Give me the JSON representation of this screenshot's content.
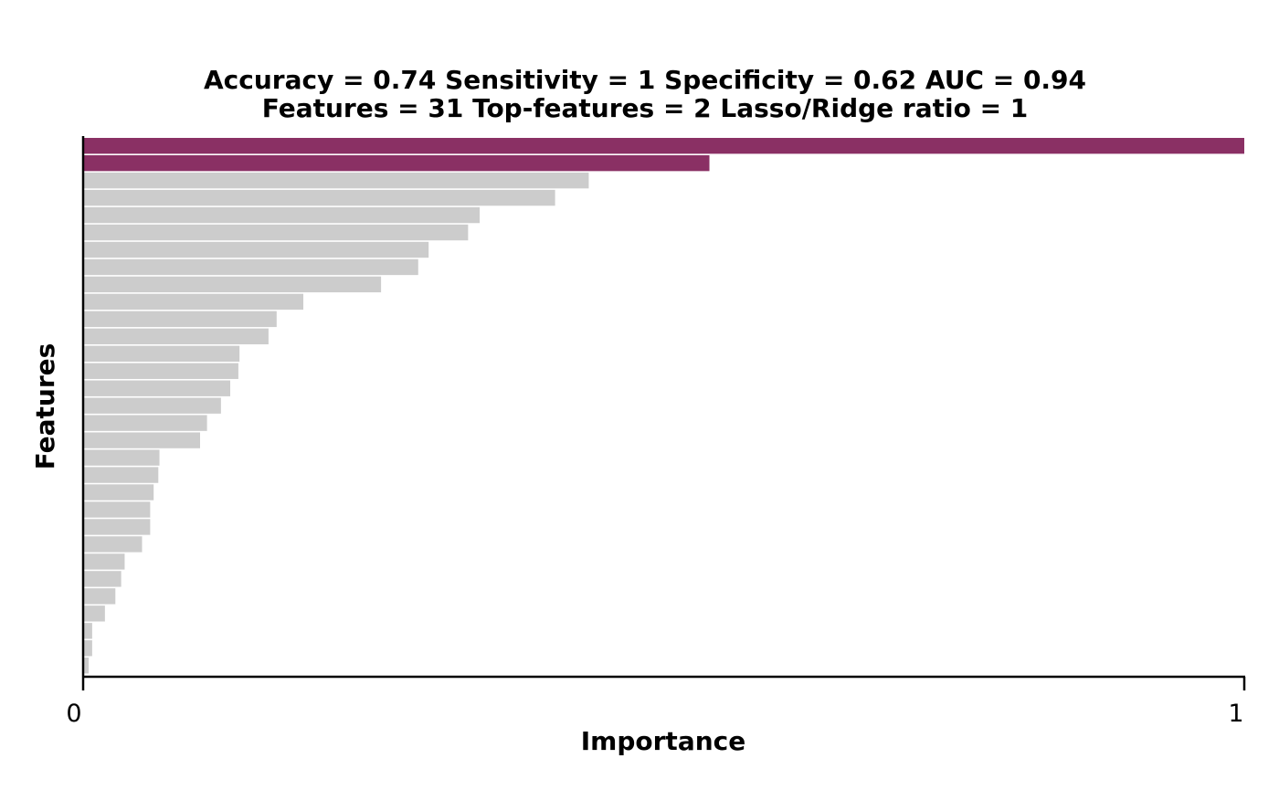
{
  "chart_data": {
    "type": "bar",
    "orientation": "horizontal",
    "title_lines": [
      "Accuracy = 0.74    Sensitivity = 1    Specificity = 0.62    AUC = 0.94",
      "Features = 31    Top-features = 2    Lasso/Ridge ratio = 1"
    ],
    "xlabel": "Importance",
    "ylabel": "Features",
    "xlim": [
      0,
      1
    ],
    "x_ticks": [
      "0",
      "1"
    ],
    "grid": false,
    "legend": "none",
    "top_features": 2,
    "values": [
      1.0,
      0.539,
      0.435,
      0.406,
      0.341,
      0.331,
      0.297,
      0.288,
      0.256,
      0.189,
      0.166,
      0.159,
      0.134,
      0.133,
      0.126,
      0.118,
      0.106,
      0.1,
      0.065,
      0.064,
      0.06,
      0.057,
      0.057,
      0.05,
      0.035,
      0.032,
      0.027,
      0.018,
      0.007,
      0.007,
      0.004
    ],
    "colors": {
      "top": "#8a3064",
      "other": "#cccccc",
      "axis": "#000000"
    }
  }
}
